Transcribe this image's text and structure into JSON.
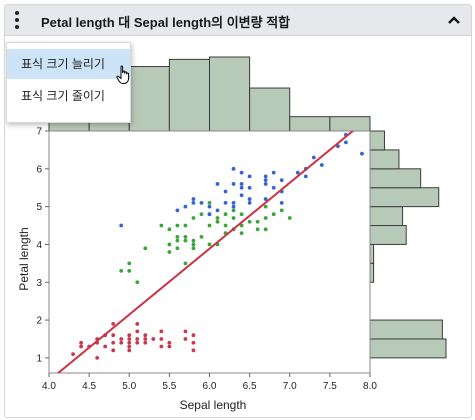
{
  "header": {
    "title": "Petal length 대 Sepal length의 이변량 적합",
    "menu_icon": "kebab-icon",
    "collapse_icon": "chevron-up-icon"
  },
  "menu": {
    "items": [
      {
        "label": "표식 크기 늘리기"
      },
      {
        "label": "표식 크기 줄이기"
      }
    ]
  },
  "colors": {
    "setosa": "#c8384f",
    "versicolor": "#3aa63a",
    "virginica": "#3a63cf",
    "fit_line": "#cc3344",
    "histogram_fill": "#b7c9b7",
    "histogram_stroke": "#3c3c3c",
    "header_bg": "#e6e8eb",
    "menu_highlight": "#cde3f7"
  },
  "chart_data": {
    "type": "scatter",
    "xlabel": "Sepal length",
    "ylabel": "Petal length",
    "xlim": [
      4.0,
      8.0
    ],
    "ylim": [
      0.6,
      7.0
    ],
    "xticks": [
      "4.0",
      "4.5",
      "5.0",
      "5.5",
      "6.0",
      "6.5",
      "7.0",
      "7.5",
      "8.0"
    ],
    "yticks": [
      "1",
      "2",
      "3",
      "4",
      "5",
      "6",
      "7"
    ],
    "fit_line": {
      "x": [
        4.0,
        7.9
      ],
      "y": [
        0.4,
        7.2
      ]
    },
    "series": [
      {
        "color_key": "setosa",
        "points": [
          [
            4.3,
            1.1
          ],
          [
            4.4,
            1.3
          ],
          [
            4.4,
            1.4
          ],
          [
            4.5,
            1.3
          ],
          [
            4.6,
            1.0
          ],
          [
            4.6,
            1.4
          ],
          [
            4.6,
            1.5
          ],
          [
            4.7,
            1.3
          ],
          [
            4.7,
            1.6
          ],
          [
            4.8,
            1.4
          ],
          [
            4.8,
            1.6
          ],
          [
            4.8,
            1.9
          ],
          [
            4.9,
            1.4
          ],
          [
            4.9,
            1.5
          ],
          [
            5.0,
            1.2
          ],
          [
            5.0,
            1.4
          ],
          [
            5.0,
            1.5
          ],
          [
            5.0,
            1.6
          ],
          [
            5.1,
            1.4
          ],
          [
            5.1,
            1.5
          ],
          [
            5.1,
            1.7
          ],
          [
            5.1,
            1.9
          ],
          [
            5.2,
            1.4
          ],
          [
            5.2,
            1.5
          ],
          [
            5.3,
            1.5
          ],
          [
            5.4,
            1.3
          ],
          [
            5.4,
            1.5
          ],
          [
            5.4,
            1.7
          ],
          [
            5.5,
            1.3
          ],
          [
            5.5,
            1.4
          ],
          [
            5.7,
            1.5
          ],
          [
            5.7,
            1.7
          ],
          [
            5.8,
            1.2
          ],
          [
            5.8,
            1.4
          ],
          [
            5.8,
            1.6
          ],
          [
            4.8,
            1.2
          ],
          [
            5.0,
            1.3
          ],
          [
            5.2,
            1.6
          ]
        ]
      },
      {
        "color_key": "versicolor",
        "points": [
          [
            4.9,
            3.3
          ],
          [
            5.0,
            3.5
          ],
          [
            5.0,
            3.3
          ],
          [
            5.1,
            3.0
          ],
          [
            5.2,
            3.9
          ],
          [
            5.4,
            4.5
          ],
          [
            5.5,
            4.0
          ],
          [
            5.5,
            3.8
          ],
          [
            5.5,
            4.4
          ],
          [
            5.6,
            3.9
          ],
          [
            5.6,
            4.1
          ],
          [
            5.6,
            4.2
          ],
          [
            5.6,
            4.5
          ],
          [
            5.7,
            3.5
          ],
          [
            5.7,
            4.1
          ],
          [
            5.7,
            4.2
          ],
          [
            5.7,
            4.5
          ],
          [
            5.8,
            3.9
          ],
          [
            5.8,
            4.0
          ],
          [
            5.8,
            4.1
          ],
          [
            5.9,
            4.2
          ],
          [
            5.9,
            4.8
          ],
          [
            6.0,
            4.0
          ],
          [
            6.0,
            4.5
          ],
          [
            6.0,
            5.1
          ],
          [
            6.1,
            4.0
          ],
          [
            6.1,
            4.6
          ],
          [
            6.1,
            4.7
          ],
          [
            6.2,
            4.3
          ],
          [
            6.2,
            4.5
          ],
          [
            6.3,
            4.4
          ],
          [
            6.3,
            4.7
          ],
          [
            6.3,
            4.9
          ],
          [
            6.4,
            4.3
          ],
          [
            6.4,
            4.5
          ],
          [
            6.5,
            4.6
          ],
          [
            6.6,
            4.4
          ],
          [
            6.6,
            4.6
          ],
          [
            6.7,
            4.4
          ],
          [
            6.7,
            4.7
          ],
          [
            6.7,
            5.0
          ],
          [
            6.8,
            4.8
          ],
          [
            6.9,
            4.9
          ],
          [
            7.0,
            4.7
          ],
          [
            6.0,
            4.8
          ],
          [
            6.4,
            4.8
          ],
          [
            5.8,
            4.7
          ],
          [
            6.2,
            4.8
          ]
        ]
      },
      {
        "color_key": "virginica",
        "points": [
          [
            4.9,
            4.5
          ],
          [
            5.6,
            4.9
          ],
          [
            5.7,
            5.0
          ],
          [
            5.8,
            5.1
          ],
          [
            5.8,
            5.2
          ],
          [
            6.0,
            4.8
          ],
          [
            6.0,
            5.0
          ],
          [
            6.1,
            5.6
          ],
          [
            6.2,
            5.4
          ],
          [
            6.3,
            5.0
          ],
          [
            6.3,
            5.1
          ],
          [
            6.3,
            5.6
          ],
          [
            6.3,
            6.0
          ],
          [
            6.4,
            5.3
          ],
          [
            6.4,
            5.5
          ],
          [
            6.4,
            5.6
          ],
          [
            6.5,
            5.2
          ],
          [
            6.5,
            5.5
          ],
          [
            6.5,
            5.8
          ],
          [
            6.7,
            5.2
          ],
          [
            6.7,
            5.6
          ],
          [
            6.7,
            5.7
          ],
          [
            6.7,
            5.8
          ],
          [
            6.8,
            5.5
          ],
          [
            6.8,
            5.9
          ],
          [
            6.9,
            5.1
          ],
          [
            6.9,
            5.4
          ],
          [
            6.9,
            5.7
          ],
          [
            7.1,
            5.9
          ],
          [
            7.2,
            5.8
          ],
          [
            7.2,
            6.0
          ],
          [
            7.3,
            6.3
          ],
          [
            7.4,
            6.1
          ],
          [
            7.6,
            6.6
          ],
          [
            7.7,
            6.7
          ],
          [
            7.7,
            6.9
          ],
          [
            7.9,
            6.4
          ],
          [
            6.1,
            4.9
          ],
          [
            6.2,
            5.1
          ],
          [
            6.4,
            5.9
          ],
          [
            5.9,
            5.1
          ],
          [
            6.5,
            5.1
          ]
        ]
      }
    ],
    "top_histogram": {
      "bin_edges": [
        4.0,
        4.5,
        5.0,
        5.5,
        6.0,
        6.5,
        7.0,
        7.5,
        8.0
      ],
      "counts": [
        4,
        23,
        27,
        30,
        31,
        18,
        6,
        6
      ]
    },
    "right_histogram": {
      "bin_edges": [
        1.0,
        1.5,
        2.0,
        2.5,
        3.0,
        3.5,
        4.0,
        4.5,
        5.0,
        5.5,
        6.0,
        6.5,
        7.0
      ],
      "counts": [
        21,
        20,
        0,
        0,
        1,
        1,
        10,
        9,
        19,
        14,
        8,
        4
      ]
    }
  }
}
